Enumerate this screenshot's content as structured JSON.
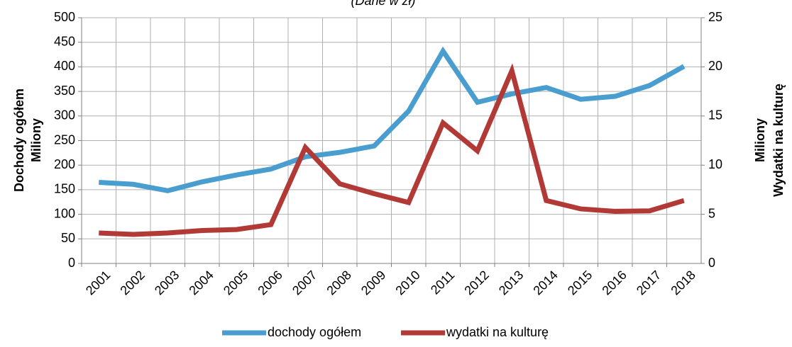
{
  "chart_data": {
    "type": "line",
    "subtitle": "(Dane w zł)",
    "ylabel": "Dochody ogółem",
    "ylabel_unit": "Miliony",
    "y2label": "Wydatki na kulturę",
    "y2label_unit": "Miliony",
    "categories": [
      "2001",
      "2002",
      "2003",
      "2004",
      "2005",
      "2006",
      "2007",
      "2008",
      "2009",
      "2010",
      "2011",
      "2012",
      "2013",
      "2014",
      "2015",
      "2016",
      "2017",
      "2018"
    ],
    "series": [
      {
        "name": "dochody ogółem",
        "color": "#4a9ecf",
        "values": [
          165,
          161,
          148,
          166,
          180,
          192,
          217,
          226,
          239,
          310,
          432,
          328,
          345,
          358,
          334,
          340,
          362,
          401
        ]
      },
      {
        "name": "wydatki na kulturę",
        "color": "#b23a36",
        "axis": "y2",
        "values": [
          3.1,
          2.95,
          3.1,
          3.35,
          3.45,
          3.95,
          11.8,
          8.1,
          7.1,
          6.2,
          14.3,
          11.45,
          19.6,
          6.4,
          5.55,
          5.3,
          5.35,
          6.4
        ]
      }
    ],
    "ylim": [
      0,
      500
    ],
    "yticks": [
      0,
      50,
      100,
      150,
      200,
      250,
      300,
      350,
      400,
      450,
      500
    ],
    "y2lim": [
      0,
      25
    ],
    "y2ticks": [
      0,
      5,
      10,
      15,
      20,
      25
    ],
    "grid": true,
    "legend": "bottom"
  }
}
